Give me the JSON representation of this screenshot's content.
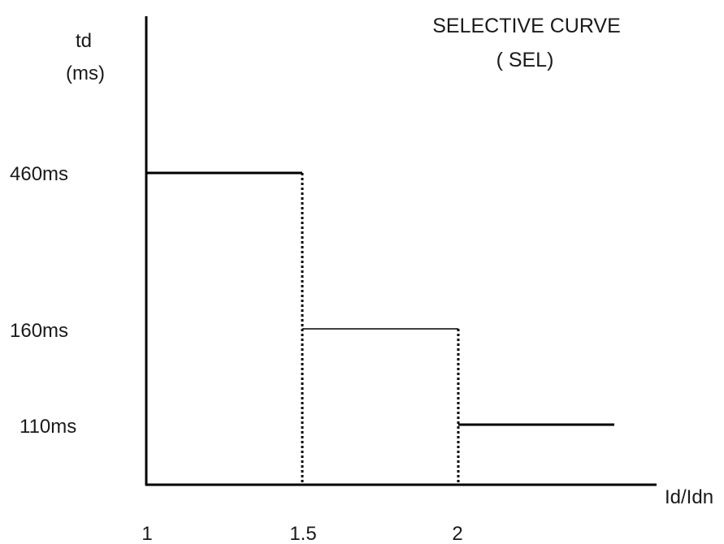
{
  "chart_data": {
    "type": "line",
    "title": "SELECTIVE CURVE",
    "subtitle": "( SEL)",
    "ylabel_line1": "td",
    "ylabel_line2": "(ms)",
    "xlabel": "Id/Idn",
    "x_ticks": [
      "1",
      "1.5",
      "2"
    ],
    "y_ticks": [
      "460ms",
      "160ms",
      "110ms"
    ],
    "segments": [
      {
        "x_start": 1,
        "x_end": 1.5,
        "y": 460,
        "style": "solid"
      },
      {
        "x_start": 1.5,
        "x_end": 2,
        "y": 160,
        "style": "solid"
      },
      {
        "x_start": 2,
        "x_end": 2.5,
        "y": 110,
        "style": "solid"
      }
    ],
    "drops": [
      {
        "x": 1.5,
        "style": "dotted"
      },
      {
        "x": 2,
        "style": "dotted"
      }
    ],
    "grid": false,
    "legend": "none"
  }
}
